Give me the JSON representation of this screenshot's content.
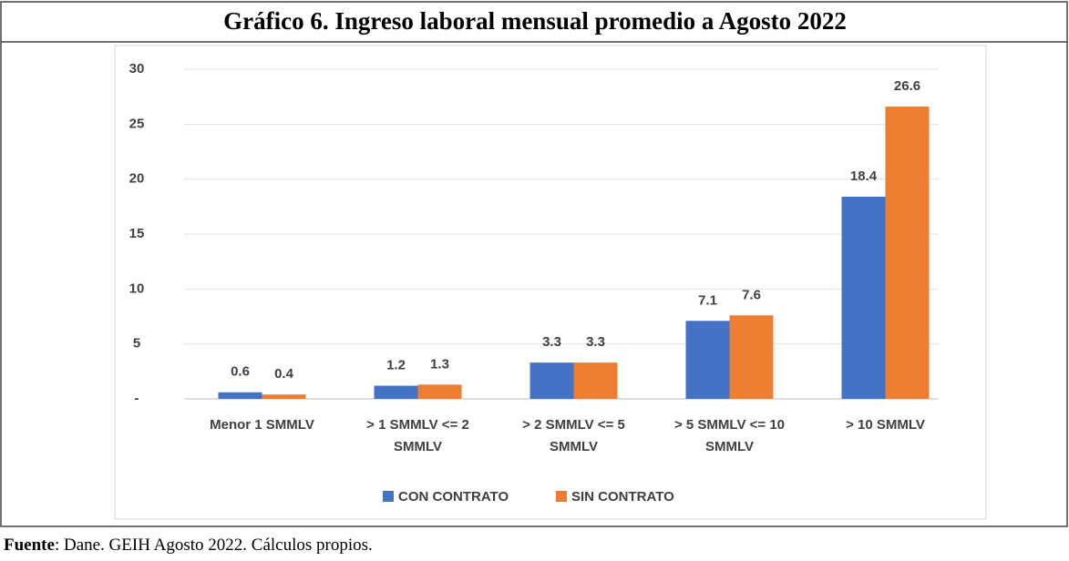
{
  "chart_data": {
    "type": "bar",
    "title": "Gráfico 6. Ingreso laboral mensual promedio a Agosto 2022",
    "categories": [
      "Menor 1 SMMLV",
      "> 1 SMMLV <= 2 SMMLV",
      "> 2 SMMLV <= 5 SMMLV",
      "> 5 SMMLV <= 10 SMMLV",
      "> 10 SMMLV"
    ],
    "series": [
      {
        "name": "CON CONTRATO",
        "color": "#4472c4",
        "values": [
          0.6,
          1.2,
          3.3,
          7.1,
          18.4
        ]
      },
      {
        "name": "SIN CONTRATO",
        "color": "#ed7d31",
        "values": [
          0.4,
          1.3,
          3.3,
          7.6,
          26.6
        ]
      }
    ],
    "ylim": [
      0,
      30
    ],
    "yticks": [
      {
        "value": 0,
        "label": "-"
      },
      5,
      10,
      15,
      20,
      25,
      30
    ],
    "grid": true,
    "legend": "bottom",
    "source_label": "Fuente",
    "source": ": Dane. GEIH Agosto 2022. Cálculos propios."
  }
}
